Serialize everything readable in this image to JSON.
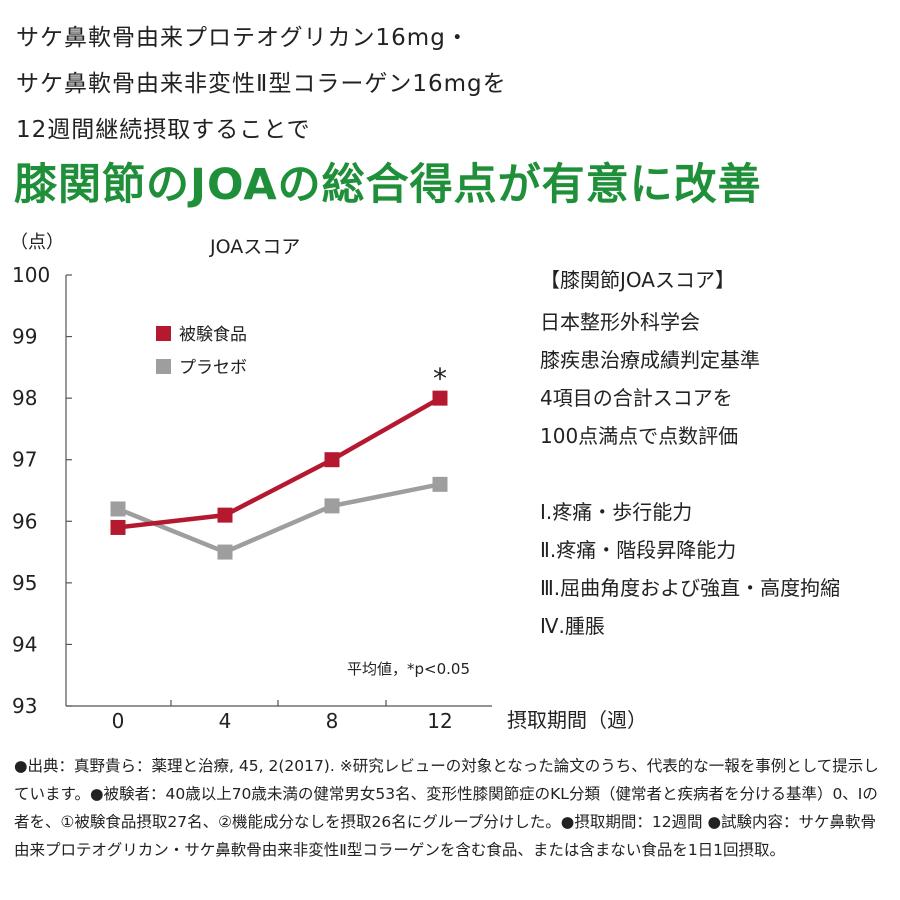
{
  "header": {
    "line1": "サケ鼻軟骨由来プロテオグリカン16mg・",
    "line2": "サケ鼻軟骨由来非変性Ⅱ型コラーゲン16mgを",
    "line3": "12週間継続摂取することで",
    "headline": "膝関節のJOAの総合得点が有意に改善"
  },
  "colors": {
    "test": "#b5192f",
    "placebo": "#9e9e9e",
    "headline": "#1f8f3a"
  },
  "chart_data": {
    "type": "line",
    "title": "JOAスコア",
    "ylabel": "（点）",
    "xlabel": "摂取期間（週）",
    "x": [
      0,
      4,
      8,
      12
    ],
    "xticklabels": [
      "0",
      "4",
      "8",
      "12"
    ],
    "ylim": [
      93,
      100
    ],
    "yticks": [
      "93",
      "94",
      "95",
      "96",
      "97",
      "98",
      "99",
      "100"
    ],
    "series": [
      {
        "name": "被験食品",
        "values": [
          95.9,
          96.1,
          97.0,
          98.0
        ],
        "color": "#b5192f",
        "marker": "square"
      },
      {
        "name": "プラセボ",
        "values": [
          96.2,
          95.5,
          96.25,
          96.6
        ],
        "color": "#9e9e9e",
        "marker": "square"
      }
    ],
    "annotations": {
      "significance_mark": "*",
      "note": "平均値，*p<0.05"
    },
    "legend": "top-left",
    "grid": false
  },
  "info": {
    "lines": [
      "【膝関節JOAスコア】",
      "日本整形外科学会",
      "膝疾患治療成績判定基準",
      "4項目の合計スコアを",
      "100点満点で点数評価"
    ],
    "items": [
      "Ⅰ.疼痛・歩行能力",
      "Ⅱ.疼痛・階段昇降能力",
      "Ⅲ.屈曲角度および強直・高度拘縮",
      "Ⅳ.腫脹"
    ]
  },
  "footnote": "●出典：真野貴ら：薬理と治療, 45, 2(2017). ※研究レビューの対象となった論文のうち、代表的な一報を事例として提示しています。●被験者：40歳以上70歳未満の健常男女53名、変形性膝関節症のKL分類（健常者と疾病者を分ける基準）0、Ⅰの者を、①被験食品摂取27名、②機能成分なしを摂取26名にグループ分けした。●摂取期間：12週間 ●試験内容：サケ鼻軟骨由来プロテオグリカン・サケ鼻軟骨由来非変性Ⅱ型コラーゲンを含む食品、または含まない食品を1日1回摂取。"
}
